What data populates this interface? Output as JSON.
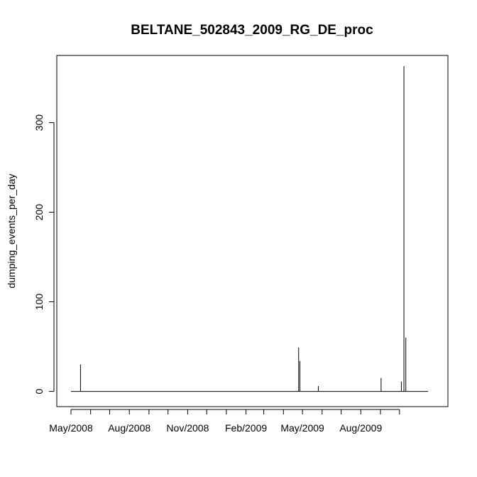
{
  "chart_data": {
    "type": "line",
    "title": "BELTANE_502843_2009_RG_DE_proc",
    "xlabel": "",
    "ylabel": "dumping_events_per_day",
    "x_tick_labels": [
      "May/2008",
      "Aug/2008",
      "Nov/2008",
      "Feb/2009",
      "May/2009",
      "Aug/2009"
    ],
    "y_ticks": [
      0,
      100,
      200,
      300
    ],
    "ylim": [
      -17,
      375
    ],
    "baseline_range": [
      "2008-05-01",
      "2009-11-15"
    ],
    "baseline_value": 0,
    "spikes": [
      {
        "x": "2008-05-16",
        "y": 30
      },
      {
        "x": "2009-04-25",
        "y": 49
      },
      {
        "x": "2009-04-27",
        "y": 34
      },
      {
        "x": "2009-05-26",
        "y": 6
      },
      {
        "x": "2009-09-02",
        "y": 15
      },
      {
        "x": "2009-10-04",
        "y": 11
      },
      {
        "x": "2009-10-08",
        "y": 363
      },
      {
        "x": "2009-10-11",
        "y": 60
      }
    ],
    "grid": false,
    "color": "#000000"
  }
}
